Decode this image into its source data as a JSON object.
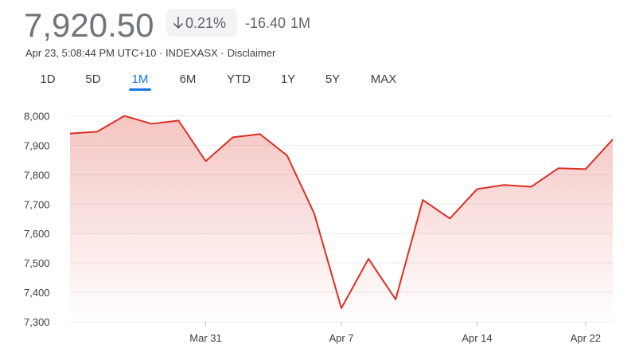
{
  "header": {
    "price": "7,920.50",
    "change_percent": "0.21%",
    "change": "-16.40",
    "period": "1M",
    "info": [
      "Apr 23, 5:08:44 PM UTC+10 · INDEXASX ·",
      "Disclaimer"
    ]
  },
  "tabs": {
    "items": [
      "1D",
      "5D",
      "1M",
      "6M",
      "YTD",
      "1Y",
      "5Y",
      "MAX"
    ],
    "selected": 2
  },
  "chart_data": {
    "type": "line",
    "categories": [
      null,
      null,
      null,
      null,
      null,
      "Mar 31",
      null,
      null,
      null,
      null,
      "Apr 7",
      null,
      null,
      null,
      null,
      "Apr 14",
      null,
      null,
      null,
      "Apr 22",
      null
    ],
    "series": [
      {
        "color": "#d93025",
        "values": [
          7940,
          7946,
          8000,
          7973,
          7984,
          7846,
          7927,
          7938,
          7865,
          7668,
          7346,
          7514,
          7376,
          7714,
          7651,
          7751,
          7765,
          7759,
          7822,
          7819,
          7920
        ]
      }
    ],
    "ylim": [
      7300,
      8050
    ],
    "yticks": [
      {
        "value": 7300,
        "label": "7,300"
      },
      {
        "value": 7400,
        "label": "7,400"
      },
      {
        "value": 7500,
        "label": "7,500"
      },
      {
        "value": 7600,
        "label": "7,600"
      },
      {
        "value": 7700,
        "label": "7,700"
      },
      {
        "value": 7800,
        "label": "7,800"
      },
      {
        "value": 7900,
        "label": "7,900"
      },
      {
        "value": 8000,
        "label": "8,000"
      }
    ],
    "grid": true,
    "area": true
  }
}
